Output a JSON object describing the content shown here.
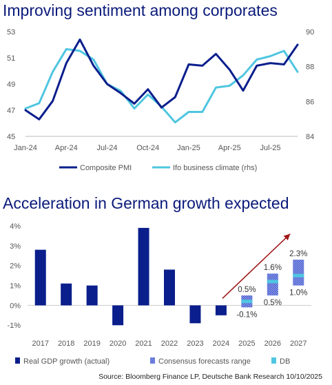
{
  "source": "Source: Bloomberg Finance LP, Deutsche Bank Research 10/10/2025",
  "chart_data": [
    {
      "type": "line",
      "title": "Improving sentiment among corporates",
      "x": [
        "Jan-24",
        "Feb-24",
        "Mar-24",
        "Apr-24",
        "May-24",
        "Jun-24",
        "Jul-24",
        "Aug-24",
        "Sep-24",
        "Oct-24",
        "Nov-24",
        "Dec-24",
        "Jan-25",
        "Feb-25",
        "Mar-25",
        "Apr-25",
        "May-25",
        "Jun-25",
        "Jul-25",
        "Aug-25",
        "Sep-25"
      ],
      "xticks": [
        "Jan-24",
        "Apr-24",
        "Jul-24",
        "Oct-24",
        "Jan-25",
        "Apr-25",
        "Jul-25"
      ],
      "ylim": [
        45,
        53
      ],
      "yticks": [
        45,
        47,
        49,
        51,
        53
      ],
      "y2lim": [
        84,
        90
      ],
      "y2ticks": [
        84,
        86,
        88,
        90
      ],
      "legend_position": "bottom",
      "series": [
        {
          "name": "Composite PMI",
          "axis": "left",
          "color": "#0a1e8c",
          "values": [
            47.0,
            46.3,
            47.7,
            50.6,
            52.4,
            50.4,
            49.0,
            48.3,
            47.5,
            48.6,
            47.2,
            48.0,
            50.5,
            50.4,
            51.3,
            50.1,
            48.5,
            50.4,
            50.6,
            50.5,
            52.0
          ]
        },
        {
          "name": "Ifo business climate (rhs)",
          "axis": "right",
          "color": "#4fc6e0",
          "values": [
            85.6,
            85.9,
            87.7,
            89.0,
            88.9,
            88.4,
            87.0,
            86.6,
            85.6,
            86.4,
            85.7,
            84.8,
            85.4,
            85.4,
            86.8,
            86.9,
            87.5,
            88.4,
            88.6,
            88.9,
            87.7
          ]
        }
      ]
    },
    {
      "type": "bar",
      "title": "Acceleration in German growth expected",
      "categories": [
        "2017",
        "2018",
        "2019",
        "2020",
        "2021",
        "2022",
        "2023",
        "2024",
        "2025",
        "2026",
        "2027"
      ],
      "ylim": [
        -1.2,
        4
      ],
      "yticks": [
        "-1%",
        "0%",
        "1%",
        "2%",
        "3%",
        "4%"
      ],
      "ytick_values": [
        -1,
        0,
        1,
        2,
        3,
        4
      ],
      "legend_position": "bottom",
      "series": [
        {
          "name": "Real GDP growth (actual)",
          "color": "#0a1e8c",
          "values": [
            2.8,
            1.1,
            1.0,
            -1.0,
            3.9,
            1.8,
            -0.9,
            -0.5,
            null,
            null,
            null
          ]
        },
        {
          "name": "Consensus forecasts range",
          "color": "#3d52c8",
          "ranges": [
            null,
            null,
            null,
            null,
            null,
            null,
            null,
            null,
            [
              -0.1,
              0.5
            ],
            [
              0.5,
              1.6
            ],
            [
              1.0,
              2.3
            ]
          ],
          "low_labels": [
            "",
            "",
            "",
            "",
            "",
            "",
            "",
            "",
            "-0.1%",
            "0.5%",
            "1.0%"
          ],
          "high_labels": [
            "",
            "",
            "",
            "",
            "",
            "",
            "",
            "",
            "0.5%",
            "1.6%",
            "2.3%"
          ]
        },
        {
          "name": "DB",
          "color": "#4fc6e0",
          "values": [
            null,
            null,
            null,
            null,
            null,
            null,
            null,
            null,
            0.2,
            1.2,
            1.5
          ]
        }
      ],
      "annotation": "arrow"
    }
  ]
}
